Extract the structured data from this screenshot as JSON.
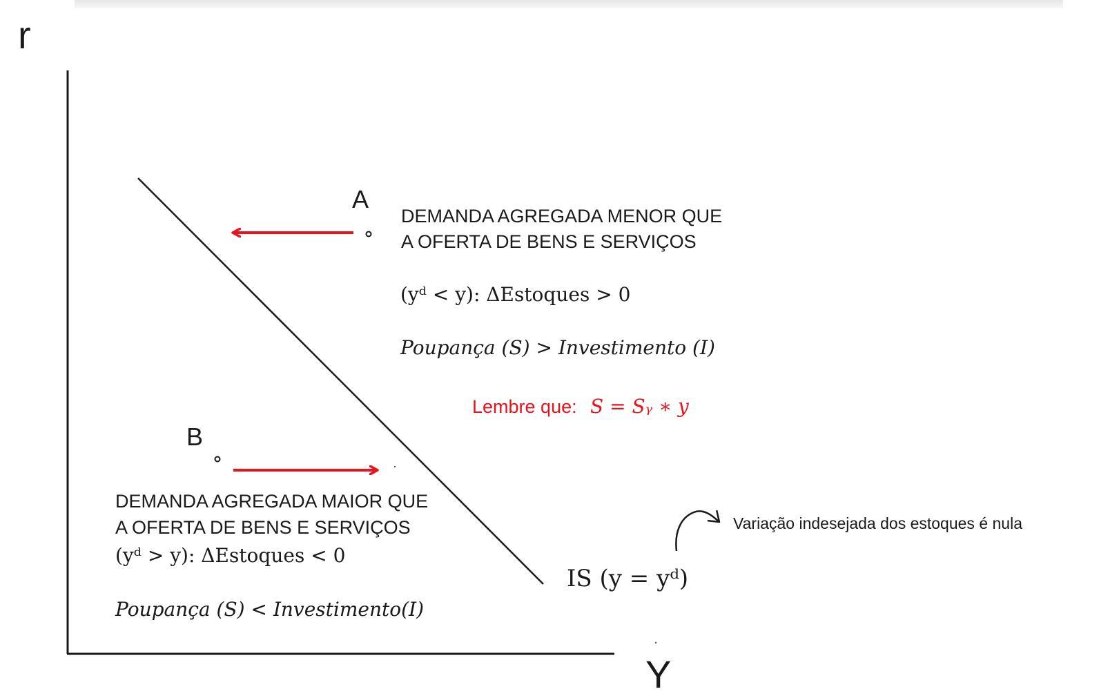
{
  "axes": {
    "y_label": "r",
    "x_label": "Y"
  },
  "points": {
    "a": {
      "label": "A"
    },
    "b": {
      "label": "B"
    }
  },
  "region_above": {
    "line1": "DEMANDA AGREGADA MENOR QUE",
    "line2": "A OFERTA DE BENS E SERVIÇOS",
    "condition": "(yᵈ < y): ΔEstoques > 0",
    "savings": "Poupança (S) > Investimento (I)",
    "reminder_label": "Lembre que:",
    "reminder_formula": "S = Sᵧ ∗ y"
  },
  "region_below": {
    "line1": "DEMANDA AGREGADA MAIOR QUE",
    "line2": "A OFERTA DE BENS E SERVIÇOS",
    "condition": "(yᵈ > y): ΔEstoques < 0",
    "savings": "Poupança (S) < Investimento(I)"
  },
  "curve": {
    "label": "IS (y = yᵈ)",
    "annotation": "Variação indesejada dos estoques é nula"
  },
  "colors": {
    "arrow": "#e8141b",
    "line": "#1a1a1a"
  }
}
